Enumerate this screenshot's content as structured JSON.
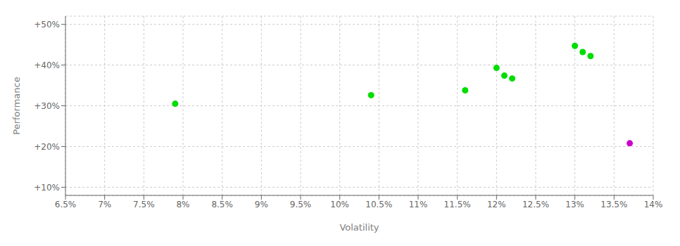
{
  "chart_data": {
    "type": "scatter",
    "x_label": "Volatility",
    "y_label": "Performance",
    "xlim": [
      0.065,
      0.14
    ],
    "ylim": [
      0.08,
      0.52
    ],
    "xticks": [
      {
        "value": 0.065,
        "label": "6.5%"
      },
      {
        "value": 0.07,
        "label": "7%"
      },
      {
        "value": 0.075,
        "label": "7.5%"
      },
      {
        "value": 0.08,
        "label": "8%"
      },
      {
        "value": 0.085,
        "label": "8.5%"
      },
      {
        "value": 0.09,
        "label": "9%"
      },
      {
        "value": 0.095,
        "label": "9.5%"
      },
      {
        "value": 0.1,
        "label": "10%"
      },
      {
        "value": 0.105,
        "label": "10.5%"
      },
      {
        "value": 0.11,
        "label": "11%"
      },
      {
        "value": 0.115,
        "label": "11.5%"
      },
      {
        "value": 0.12,
        "label": "12%"
      },
      {
        "value": 0.125,
        "label": "12.5%"
      },
      {
        "value": 0.13,
        "label": "13%"
      },
      {
        "value": 0.135,
        "label": "13.5%"
      },
      {
        "value": 0.14,
        "label": "14%"
      }
    ],
    "yticks": [
      {
        "value": 0.1,
        "label": "+10%"
      },
      {
        "value": 0.2,
        "label": "+20%"
      },
      {
        "value": 0.3,
        "label": "+30%"
      },
      {
        "value": 0.4,
        "label": "+40%"
      },
      {
        "value": 0.5,
        "label": "+50%"
      }
    ],
    "grid": true,
    "series": [
      {
        "color": "#00dd00",
        "x": [
          0.079,
          0.104,
          0.116,
          0.12,
          0.121,
          0.122,
          0.13,
          0.131,
          0.132
        ],
        "values": [
          0.305,
          0.326,
          0.338,
          0.393,
          0.374,
          0.367,
          0.447,
          0.432,
          0.422
        ]
      },
      {
        "color": "#cc00cc",
        "x": [
          0.137
        ],
        "values": [
          0.208
        ]
      }
    ]
  }
}
